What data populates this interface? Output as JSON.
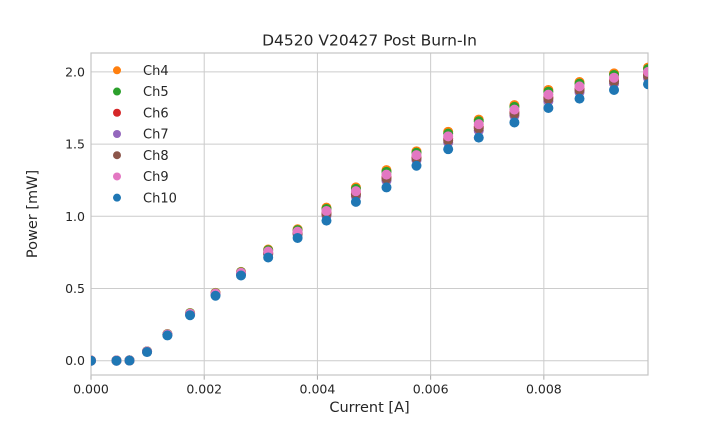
{
  "chart_data": {
    "type": "scatter",
    "title": "D4520 V20427 Post Burn-In",
    "xlabel": "Current [A]",
    "ylabel": "Power [mW]",
    "xlim": [
      0,
      0.00984
    ],
    "ylim": [
      -0.099,
      2.131
    ],
    "grid": true,
    "legend_position": "upper left",
    "x_ticks": {
      "values": [
        0,
        0.002,
        0.004,
        0.006,
        0.008
      ],
      "labels": [
        "0.000",
        "0.002",
        "0.004",
        "0.006",
        "0.008"
      ]
    },
    "y_ticks": {
      "values": [
        0,
        0.5,
        1.0,
        1.5,
        2.0
      ],
      "labels": [
        "0.0",
        "0.5",
        "1.0",
        "1.5",
        "2.0"
      ]
    },
    "x": [
      0.0,
      0.00045,
      0.00068,
      0.00099,
      0.00135,
      0.00175,
      0.0022,
      0.00265,
      0.00313,
      0.00365,
      0.00416,
      0.00468,
      0.00522,
      0.00575,
      0.00631,
      0.00685,
      0.00748,
      0.00808,
      0.00863,
      0.00924,
      0.00984
    ],
    "series": [
      {
        "name": "Ch4",
        "color": "#ff7f0e",
        "values": [
          0.001,
          0.001,
          0.002,
          0.065,
          0.185,
          0.33,
          0.47,
          0.615,
          0.77,
          0.91,
          1.06,
          1.2,
          1.32,
          1.45,
          1.585,
          1.67,
          1.77,
          1.875,
          1.93,
          1.99,
          2.03
        ]
      },
      {
        "name": "Ch5",
        "color": "#2ca02c",
        "values": [
          0.001,
          0.001,
          0.002,
          0.065,
          0.184,
          0.329,
          0.468,
          0.613,
          0.765,
          0.904,
          1.051,
          1.19,
          1.308,
          1.44,
          1.573,
          1.658,
          1.758,
          1.863,
          1.919,
          1.979,
          2.019
        ]
      },
      {
        "name": "Ch6",
        "color": "#d62728",
        "values": [
          0.001,
          0.001,
          0.002,
          0.063,
          0.181,
          0.324,
          0.462,
          0.605,
          0.748,
          0.886,
          1.024,
          1.16,
          1.272,
          1.41,
          1.537,
          1.62,
          1.722,
          1.825,
          1.884,
          1.944,
          1.984
        ]
      },
      {
        "name": "Ch7",
        "color": "#9467bd",
        "values": [
          0.0,
          0.0,
          0.001,
          0.062,
          0.179,
          0.321,
          0.458,
          0.6,
          0.736,
          0.873,
          1.004,
          1.138,
          1.246,
          1.388,
          1.511,
          1.593,
          1.696,
          1.798,
          1.859,
          1.919,
          1.959
        ]
      },
      {
        "name": "Ch8",
        "color": "#8c564b",
        "values": [
          0.001,
          0.001,
          0.002,
          0.063,
          0.18,
          0.323,
          0.46,
          0.603,
          0.743,
          0.88,
          1.015,
          1.15,
          1.26,
          1.4,
          1.525,
          1.608,
          1.71,
          1.813,
          1.873,
          1.933,
          1.973
        ]
      },
      {
        "name": "Ch9",
        "color": "#e377c2",
        "values": [
          0.001,
          0.001,
          0.002,
          0.064,
          0.182,
          0.326,
          0.465,
          0.609,
          0.756,
          0.894,
          1.037,
          1.174,
          1.289,
          1.424,
          1.554,
          1.638,
          1.739,
          1.843,
          1.9,
          1.96,
          2.0
        ]
      },
      {
        "name": "Ch10",
        "color": "#1f77b4",
        "values": [
          0.0,
          0.0,
          0.001,
          0.06,
          0.175,
          0.315,
          0.45,
          0.59,
          0.715,
          0.85,
          0.97,
          1.1,
          1.2,
          1.35,
          1.465,
          1.545,
          1.65,
          1.75,
          1.815,
          1.875,
          1.915
        ]
      }
    ]
  },
  "colors": {
    "background": "#ffffff",
    "grid": "#cccccc",
    "spine": "#c4c4c4",
    "tick": "#aaaaaa",
    "text": "#262626"
  }
}
